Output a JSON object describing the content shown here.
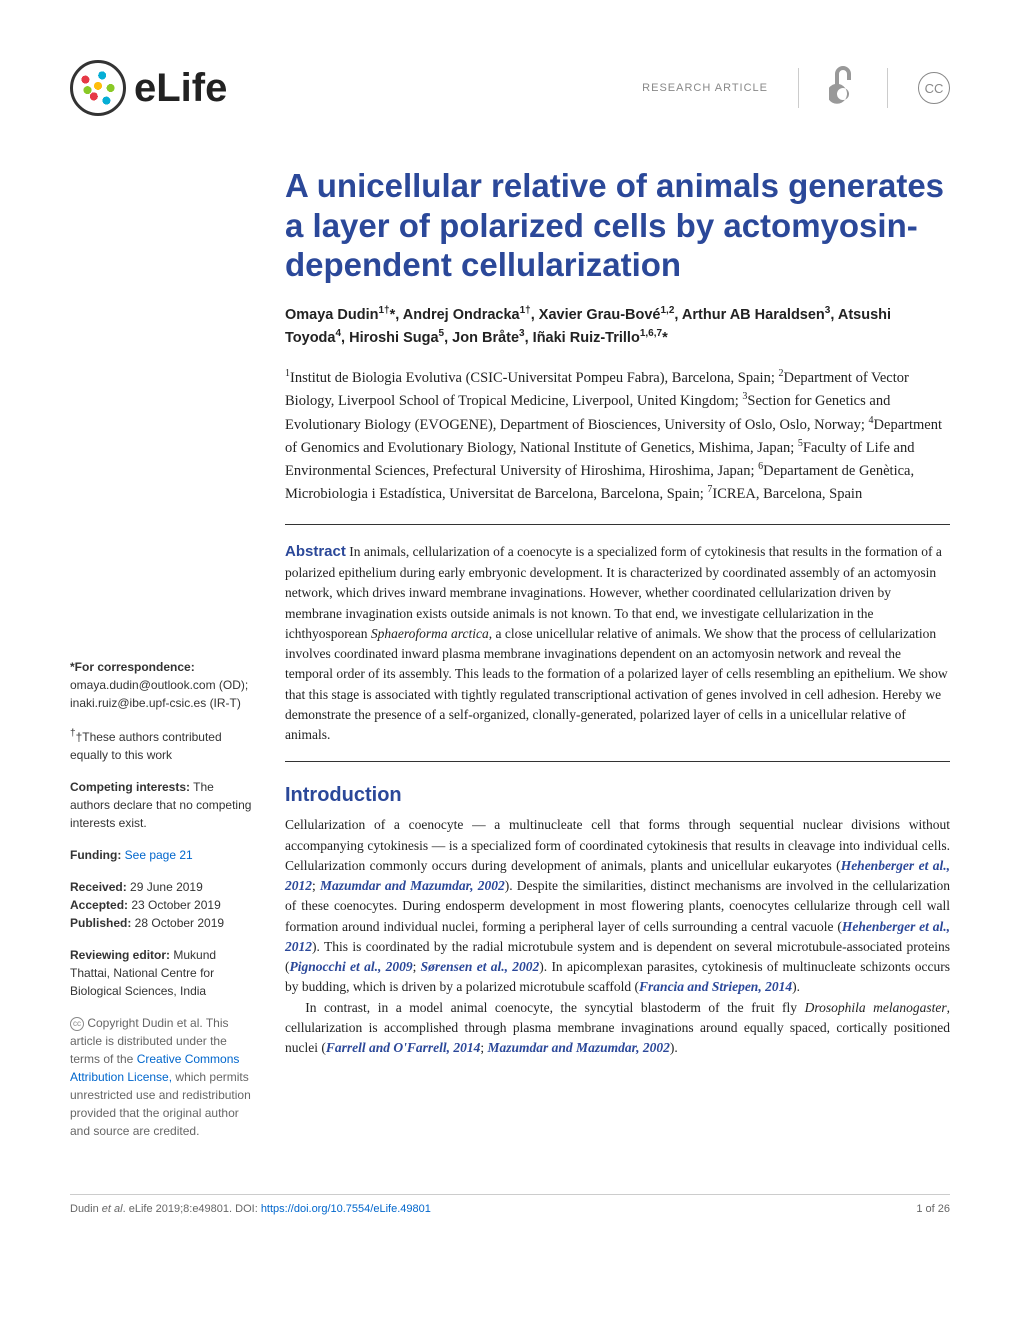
{
  "header": {
    "logo_text": "eLife",
    "article_type": "RESEARCH ARTICLE",
    "oa_glyph": "∂",
    "cc_label": "CC"
  },
  "title": "A unicellular relative of animals generates a layer of polarized cells by actomyosin-dependent cellularization",
  "authors_html": "Omaya Dudin<sup>1†</sup>*, Andrej Ondracka<sup>1†</sup>, Xavier Grau-Bové<sup>1,2</sup>, Arthur AB Haraldsen<sup>3</sup>, Atsushi Toyoda<sup>4</sup>, Hiroshi Suga<sup>5</sup>, Jon Bråte<sup>3</sup>, Iñaki Ruiz-Trillo<sup>1,6,7</sup>*",
  "affiliations_html": "<sup>1</sup>Institut de Biologia Evolutiva (CSIC-Universitat Pompeu Fabra), Barcelona, Spain; <sup>2</sup>Department of Vector Biology, Liverpool School of Tropical Medicine, Liverpool, United Kingdom; <sup>3</sup>Section for Genetics and Evolutionary Biology (EVOGENE), Department of Biosciences, University of Oslo, Oslo, Norway; <sup>4</sup>Department of Genomics and Evolutionary Biology, National Institute of Genetics, Mishima, Japan; <sup>5</sup>Faculty of Life and Environmental Sciences, Prefectural University of Hiroshima, Hiroshima, Japan; <sup>6</sup>Departament de Genètica, Microbiologia i Estadística, Universitat de Barcelona, Barcelona, Spain; <sup>7</sup>ICREA, Barcelona, Spain",
  "abstract": {
    "label": "Abstract",
    "text_html": "In animals, cellularization of a coenocyte is a specialized form of cytokinesis that results in the formation of a polarized epithelium during early embryonic development. It is characterized by coordinated assembly of an actomyosin network, which drives inward membrane invaginations. However, whether coordinated cellularization driven by membrane invagination exists outside animals is not known. To that end, we investigate cellularization in the ichthyosporean <em>Sphaeroforma arctica</em>, a close unicellular relative of animals. We show that the process of cellularization involves coordinated inward plasma membrane invaginations dependent on an actomyosin network and reveal the temporal order of its assembly. This leads to the formation of a polarized layer of cells resembling an epithelium. We show that this stage is associated with tightly regulated transcriptional activation of genes involved in cell adhesion. Hereby we demonstrate the presence of a self-organized, clonally-generated, polarized layer of cells in a unicellular relative of animals."
  },
  "sidebar": {
    "correspondence_label": "*For correspondence:",
    "correspondence_body": "omaya.dudin@outlook.com (OD); inaki.ruiz@ibe.upf-csic.es (IR-T)",
    "equal_contrib": "†These authors contributed equally to this work",
    "competing_label": "Competing interests:",
    "competing_body": " The authors declare that no competing interests exist.",
    "funding_label": "Funding:",
    "funding_link": " See page 21",
    "received_label": "Received:",
    "received_date": " 29 June 2019",
    "accepted_label": "Accepted:",
    "accepted_date": " 23 October 2019",
    "published_label": "Published:",
    "published_date": " 28 October 2019",
    "reviewing_label": "Reviewing editor:",
    "reviewing_body": "  Mukund Thattai, National Centre for Biological Sciences, India",
    "cc_mark": "cc",
    "copyright_pre": " Copyright Dudin et al. This article is distributed under the terms of the ",
    "copyright_link": "Creative Commons Attribution License,",
    "copyright_post": " which permits unrestricted use and redistribution provided that the original author and source are credited."
  },
  "intro": {
    "heading": "Introduction",
    "para1_html": "Cellularization of a coenocyte — a multinucleate cell that forms through sequential nuclear divisions without accompanying cytokinesis — is a specialized form of coordinated cytokinesis that results in cleavage into individual cells. Cellularization commonly occurs during development of animals, plants and unicellular eukaryotes (<span class=\"cite\">Hehenberger et al., 2012</span>; <span class=\"cite\">Mazumdar and Mazumdar, 2002</span>). Despite the similarities, distinct mechanisms are involved in the cellularization of these coenocytes. During endosperm development in most flowering plants, coenocytes cellularize through cell wall formation around individual nuclei, forming a peripheral layer of cells surrounding a central vacuole (<span class=\"cite\">Hehenberger et al., 2012</span>). This is coordinated by the radial microtubule system and is dependent on several microtubule-associated proteins (<span class=\"cite\">Pignocchi et al., 2009</span>; <span class=\"cite\">Sørensen et al., 2002</span>). In apicomplexan parasites, cytokinesis of multinucleate schizonts occurs by budding, which is driven by a polarized microtubule scaffold (<span class=\"cite\">Francia and Striepen, 2014</span>).",
    "para2_html": "In contrast, in a model animal coenocyte, the syncytial blastoderm of the fruit fly <em>Drosophila melanogaster</em>, cellularization is accomplished through plasma membrane invaginations around equally spaced, cortically positioned nuclei (<span class=\"cite\">Farrell and O'Farrell, 2014</span>; <span class=\"cite\">Mazumdar and Mazumdar, 2002</span>)."
  },
  "footer": {
    "citation_pre": "Dudin ",
    "citation_em": "et al",
    "citation_post": ". eLife 2019;8:e49801. DOI: ",
    "doi": "https://doi.org/10.7554/eLife.49801",
    "page": "1 of 26"
  },
  "colors": {
    "brand_blue": "#2b4899",
    "link_blue": "#0066cc",
    "text": "#222222",
    "muted": "#888888"
  }
}
